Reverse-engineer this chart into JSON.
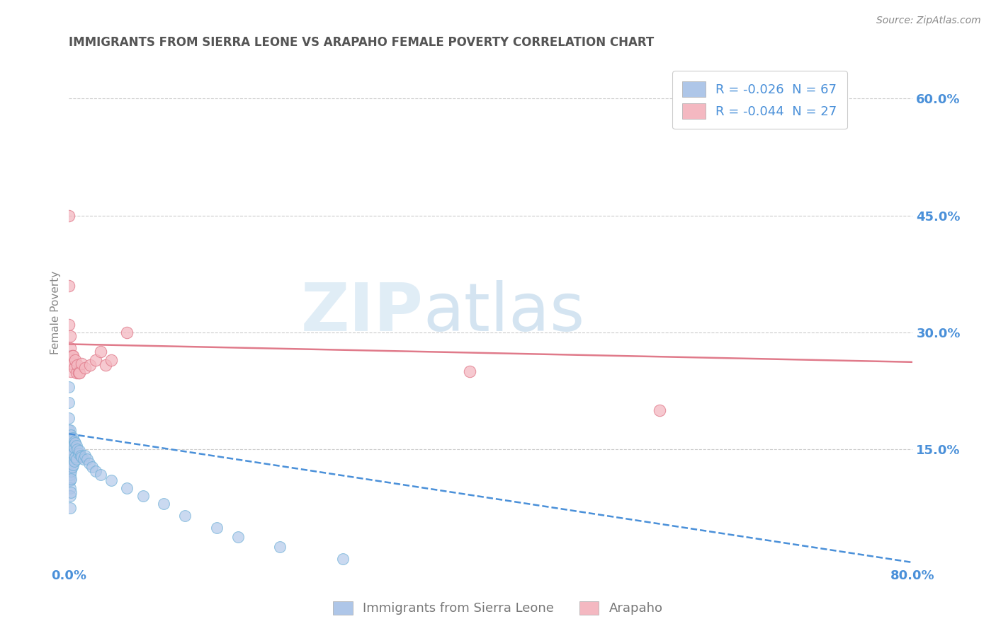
{
  "title": "IMMIGRANTS FROM SIERRA LEONE VS ARAPAHO FEMALE POVERTY CORRELATION CHART",
  "source": "Source: ZipAtlas.com",
  "ylabel": "Female Poverty",
  "legend_r1": "R = -0.026  N = 67",
  "legend_r2": "R = -0.044  N = 27",
  "blue_scatter_x": [
    0.0,
    0.0,
    0.0,
    0.0,
    0.0,
    0.0,
    0.0,
    0.0,
    0.0,
    0.0,
    0.001,
    0.001,
    0.001,
    0.001,
    0.001,
    0.001,
    0.001,
    0.001,
    0.001,
    0.001,
    0.001,
    0.001,
    0.002,
    0.002,
    0.002,
    0.002,
    0.002,
    0.002,
    0.002,
    0.002,
    0.003,
    0.003,
    0.003,
    0.003,
    0.003,
    0.004,
    0.004,
    0.004,
    0.004,
    0.005,
    0.005,
    0.005,
    0.006,
    0.006,
    0.007,
    0.007,
    0.008,
    0.009,
    0.01,
    0.011,
    0.012,
    0.014,
    0.015,
    0.017,
    0.019,
    0.022,
    0.025,
    0.03,
    0.04,
    0.055,
    0.07,
    0.09,
    0.11,
    0.14,
    0.16,
    0.2,
    0.26
  ],
  "blue_scatter_y": [
    0.27,
    0.26,
    0.23,
    0.21,
    0.19,
    0.175,
    0.16,
    0.145,
    0.13,
    0.11,
    0.175,
    0.165,
    0.155,
    0.148,
    0.14,
    0.135,
    0.125,
    0.118,
    0.11,
    0.1,
    0.09,
    0.075,
    0.168,
    0.158,
    0.15,
    0.14,
    0.132,
    0.122,
    0.112,
    0.095,
    0.162,
    0.155,
    0.148,
    0.138,
    0.128,
    0.165,
    0.155,
    0.145,
    0.13,
    0.16,
    0.152,
    0.135,
    0.158,
    0.14,
    0.155,
    0.138,
    0.15,
    0.145,
    0.148,
    0.142,
    0.14,
    0.138,
    0.142,
    0.138,
    0.132,
    0.128,
    0.122,
    0.118,
    0.11,
    0.1,
    0.09,
    0.08,
    0.065,
    0.05,
    0.038,
    0.025,
    0.01
  ],
  "pink_scatter_x": [
    0.0,
    0.0,
    0.0,
    0.001,
    0.001,
    0.001,
    0.002,
    0.002,
    0.003,
    0.003,
    0.004,
    0.005,
    0.006,
    0.007,
    0.008,
    0.009,
    0.01,
    0.012,
    0.015,
    0.02,
    0.025,
    0.03,
    0.035,
    0.04,
    0.055,
    0.38,
    0.56
  ],
  "pink_scatter_y": [
    0.45,
    0.36,
    0.31,
    0.295,
    0.28,
    0.265,
    0.26,
    0.25,
    0.27,
    0.26,
    0.27,
    0.255,
    0.265,
    0.248,
    0.258,
    0.248,
    0.248,
    0.26,
    0.255,
    0.258,
    0.265,
    0.275,
    0.258,
    0.265,
    0.3,
    0.25,
    0.2
  ],
  "blue_line_x": [
    0.0,
    0.8
  ],
  "blue_line_y": [
    0.17,
    0.005
  ],
  "pink_line_x": [
    0.0,
    0.8
  ],
  "pink_line_y": [
    0.285,
    0.262
  ],
  "xlim": [
    0.0,
    0.8
  ],
  "ylim": [
    0.0,
    0.65
  ],
  "background_color": "#ffffff",
  "grid_color": "#cccccc",
  "title_color": "#555555",
  "title_fontsize": 12,
  "axis_tick_color": "#4a90d9"
}
